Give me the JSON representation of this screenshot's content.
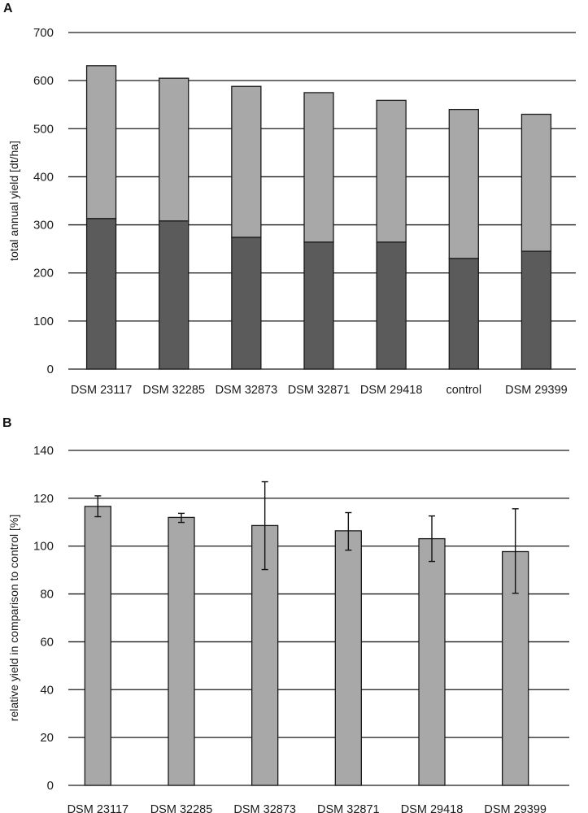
{
  "panels": {
    "a": {
      "label": "A"
    },
    "b": {
      "label": "B"
    }
  },
  "colors": {
    "bar_dark": "#5b5b5b",
    "bar_light": "#a8a8a8",
    "bar_stroke": "#1a1a1a",
    "grid": "#1a1a1a"
  },
  "chart_data": [
    {
      "panel": "A",
      "type": "bar",
      "stacked": true,
      "title": "",
      "xlabel": "",
      "ylabel": "total annual yield [dt/ha]",
      "ylim": [
        0,
        700
      ],
      "yticks": [
        0,
        100,
        200,
        300,
        400,
        500,
        600,
        700
      ],
      "grid": true,
      "legend": "none",
      "categories": [
        "DSM 23117",
        "DSM 32285",
        "DSM 32873",
        "DSM 32871",
        "DSM 29418",
        "control",
        "DSM 29399"
      ],
      "series": [
        {
          "name": "lower segment (dark)",
          "values": [
            313,
            308,
            274,
            264,
            264,
            230,
            245
          ]
        },
        {
          "name": "upper segment (light)",
          "values": [
            318,
            297,
            314,
            311,
            295,
            310,
            285
          ]
        }
      ],
      "totals": [
        631,
        605,
        588,
        575,
        559,
        540,
        530
      ]
    },
    {
      "panel": "B",
      "type": "bar",
      "title": "",
      "xlabel": "",
      "ylabel": "relative yield in comparison to control [%]",
      "ylim": [
        0,
        140
      ],
      "yticks": [
        0,
        20,
        40,
        60,
        80,
        100,
        120,
        140
      ],
      "grid": true,
      "legend": "none",
      "categories": [
        "DSM 23117",
        "DSM 32285",
        "DSM 32873",
        "DSM 32871",
        "DSM 29418",
        "DSM 29399"
      ],
      "values": [
        116.6,
        112.0,
        108.6,
        106.4,
        103.1,
        97.7
      ],
      "error_upper": [
        121.0,
        113.7,
        126.9,
        114.0,
        112.6,
        115.6
      ],
      "error_lower": [
        112.3,
        109.9,
        90.2,
        98.3,
        93.6,
        80.3
      ]
    }
  ]
}
